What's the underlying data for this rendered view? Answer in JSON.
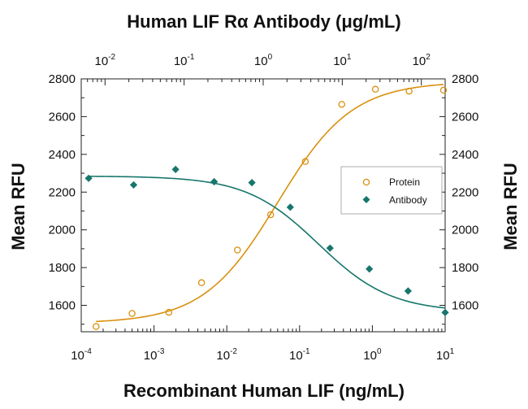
{
  "chart_data": {
    "type": "scatter",
    "title": "",
    "xlabel": "Recombinant Human LIF (ng/mL)",
    "x2label": "Human LIF Rα Antibody (μg/mL)",
    "ylabel": "Mean RFU",
    "y2label": "Mean RFU",
    "x_scale": "log",
    "x2_scale": "log",
    "xlim": [
      0.0001,
      10
    ],
    "x2lim": [
      0.005,
      200
    ],
    "ylim": [
      1460,
      2800
    ],
    "y_ticks": [
      1600,
      1800,
      2000,
      2200,
      2400,
      2600,
      2800
    ],
    "x_ticks": [
      {
        "value": 0.0001,
        "base": "10",
        "exp": "-4"
      },
      {
        "value": 0.001,
        "base": "10",
        "exp": "-3"
      },
      {
        "value": 0.01,
        "base": "10",
        "exp": "-2"
      },
      {
        "value": 0.1,
        "base": "10",
        "exp": "-1"
      },
      {
        "value": 1,
        "base": "10",
        "exp": "0"
      },
      {
        "value": 10,
        "base": "10",
        "exp": "1"
      }
    ],
    "x2_ticks": [
      {
        "value": 0.01,
        "base": "10",
        "exp": "-2"
      },
      {
        "value": 0.1,
        "base": "10",
        "exp": "-1"
      },
      {
        "value": 1,
        "base": "10",
        "exp": "0"
      },
      {
        "value": 10,
        "base": "10",
        "exp": "1"
      },
      {
        "value": 100,
        "base": "10",
        "exp": "2"
      }
    ],
    "grid": false,
    "legend_position": "right",
    "series": [
      {
        "name": "Protein",
        "axis": "bottom",
        "marker": "open-circle",
        "color": "#d9900f",
        "points": [
          {
            "x": 0.00016,
            "y": 1488
          },
          {
            "x": 0.0005,
            "y": 1557
          },
          {
            "x": 0.0016,
            "y": 1563
          },
          {
            "x": 0.0045,
            "y": 1720
          },
          {
            "x": 0.014,
            "y": 1893
          },
          {
            "x": 0.04,
            "y": 2080
          },
          {
            "x": 0.12,
            "y": 2362
          },
          {
            "x": 0.38,
            "y": 2665
          },
          {
            "x": 1.1,
            "y": 2745
          },
          {
            "x": 3.2,
            "y": 2735
          },
          {
            "x": 9.5,
            "y": 2740
          }
        ],
        "fit": {
          "bottom": 1505,
          "top": 2785,
          "ec50": 0.05,
          "hill": 0.85
        }
      },
      {
        "name": "Antibody",
        "axis": "top",
        "marker": "filled-diamond",
        "color": "#17766b",
        "points": [
          {
            "x": 0.0062,
            "y": 2273
          },
          {
            "x": 0.023,
            "y": 2238
          },
          {
            "x": 0.078,
            "y": 2320
          },
          {
            "x": 0.24,
            "y": 2255
          },
          {
            "x": 0.72,
            "y": 2250
          },
          {
            "x": 2.2,
            "y": 2120
          },
          {
            "x": 7.0,
            "y": 1903
          },
          {
            "x": 22,
            "y": 1793
          },
          {
            "x": 68,
            "y": 1676
          },
          {
            "x": 200,
            "y": 1562
          }
        ],
        "fit": {
          "bottom": 1565,
          "top": 2285,
          "ec50": 5,
          "hill": 0.95
        }
      }
    ]
  },
  "legend": {
    "protein_label": "Protein",
    "antibody_label": "Antibody"
  }
}
